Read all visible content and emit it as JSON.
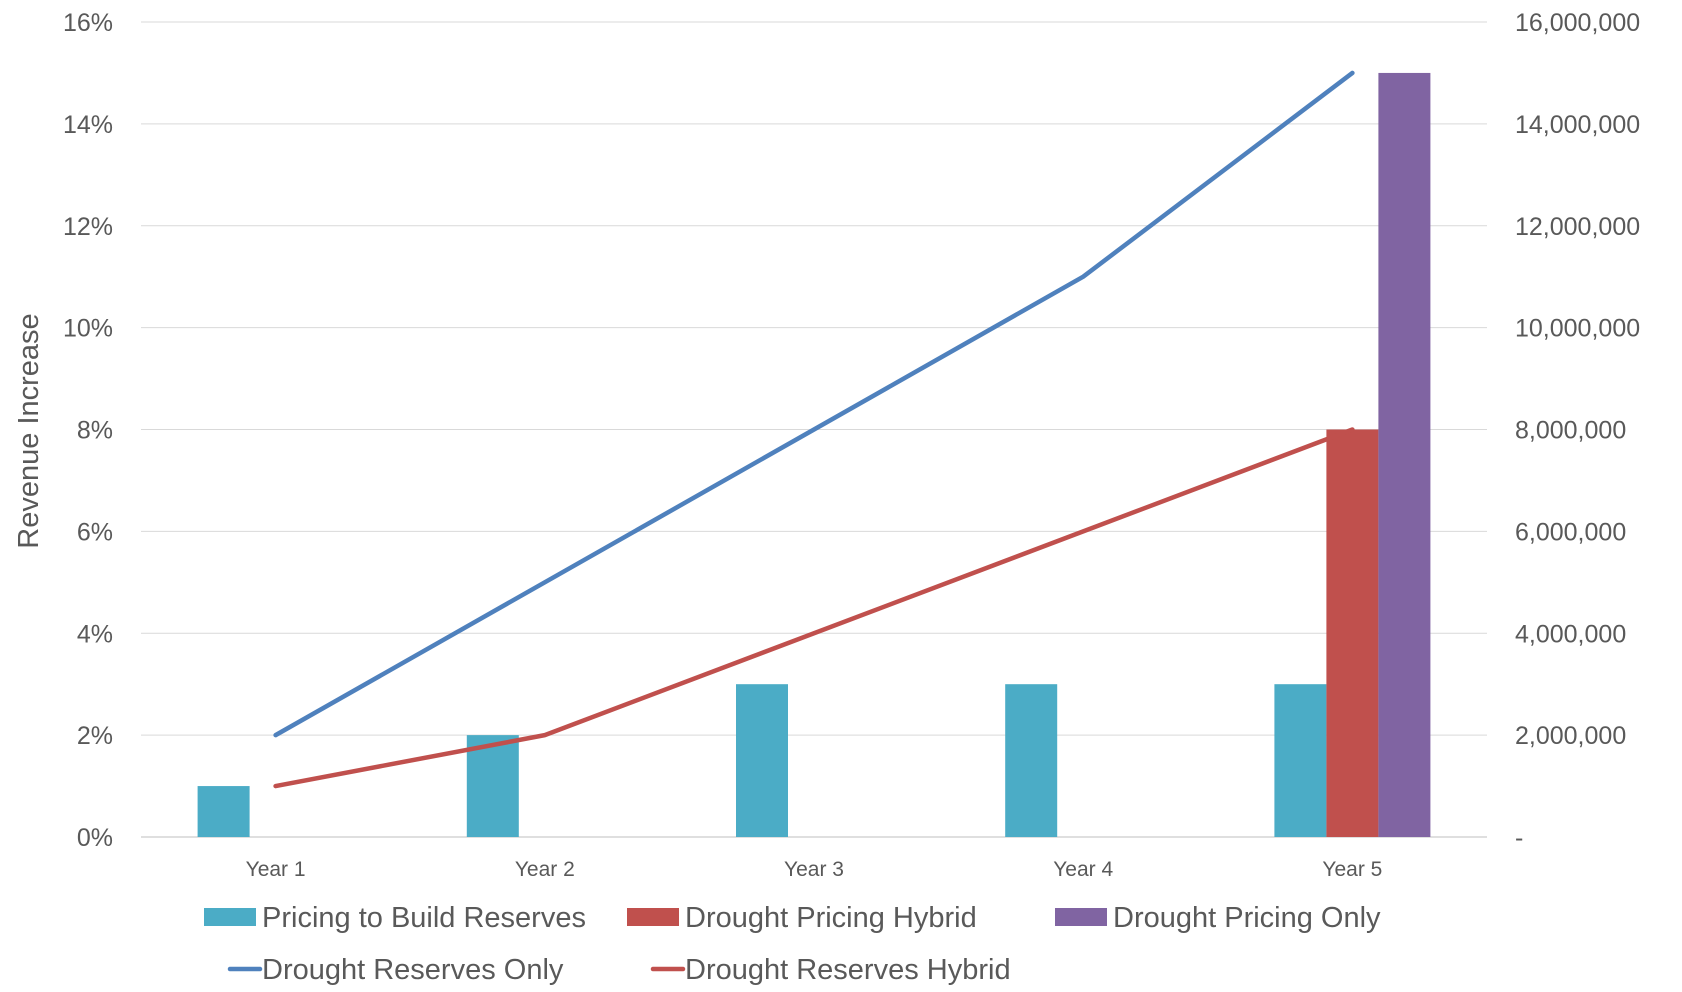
{
  "chart_data": {
    "type": "bar",
    "title": "",
    "ylabel": "Revenue Increase",
    "categories": [
      "Year 1",
      "Year 2",
      "Year 3",
      "Year 4",
      "Year 5"
    ],
    "y_left": {
      "ylim": [
        0,
        0.16
      ],
      "ticks": [
        0,
        0.02,
        0.04,
        0.06,
        0.08,
        0.1,
        0.12,
        0.14,
        0.16
      ],
      "tick_labels": [
        "0%",
        "2%",
        "4%",
        "6%",
        "8%",
        "10%",
        "12%",
        "14%",
        "16%"
      ]
    },
    "y_right": {
      "ylim": [
        0,
        16000000
      ],
      "ticks": [
        0,
        2000000,
        4000000,
        6000000,
        8000000,
        10000000,
        12000000,
        14000000,
        16000000
      ],
      "tick_labels": [
        "-",
        "2,000,000",
        "4,000,000",
        "6,000,000",
        "8,000,000",
        "10,000,000",
        "12,000,000",
        "14,000,000",
        "16,000,000"
      ]
    },
    "grid": true,
    "legend_position": "bottom",
    "bar_series": [
      {
        "name": "Pricing to Build Reserves",
        "color": "#4BACC6",
        "axis": "left",
        "values": [
          0.01,
          0.02,
          0.03,
          0.03,
          0.03
        ]
      },
      {
        "name": "Drought Pricing Hybrid",
        "color": "#C0504D",
        "axis": "left",
        "values": [
          null,
          null,
          null,
          null,
          0.08
        ]
      },
      {
        "name": "Drought Pricing Only",
        "color": "#8064A2",
        "axis": "left",
        "values": [
          null,
          null,
          null,
          null,
          0.15
        ]
      }
    ],
    "line_series": [
      {
        "name": "Drought Reserves Only",
        "color": "#4F81BD",
        "axis": "right",
        "values": [
          2000000,
          5000000,
          8000000,
          11000000,
          15000000
        ]
      },
      {
        "name": "Drought Reserves Hybrid",
        "color": "#C0504D",
        "axis": "right",
        "values": [
          1000000,
          2000000,
          4000000,
          6000000,
          8000000
        ]
      }
    ]
  }
}
